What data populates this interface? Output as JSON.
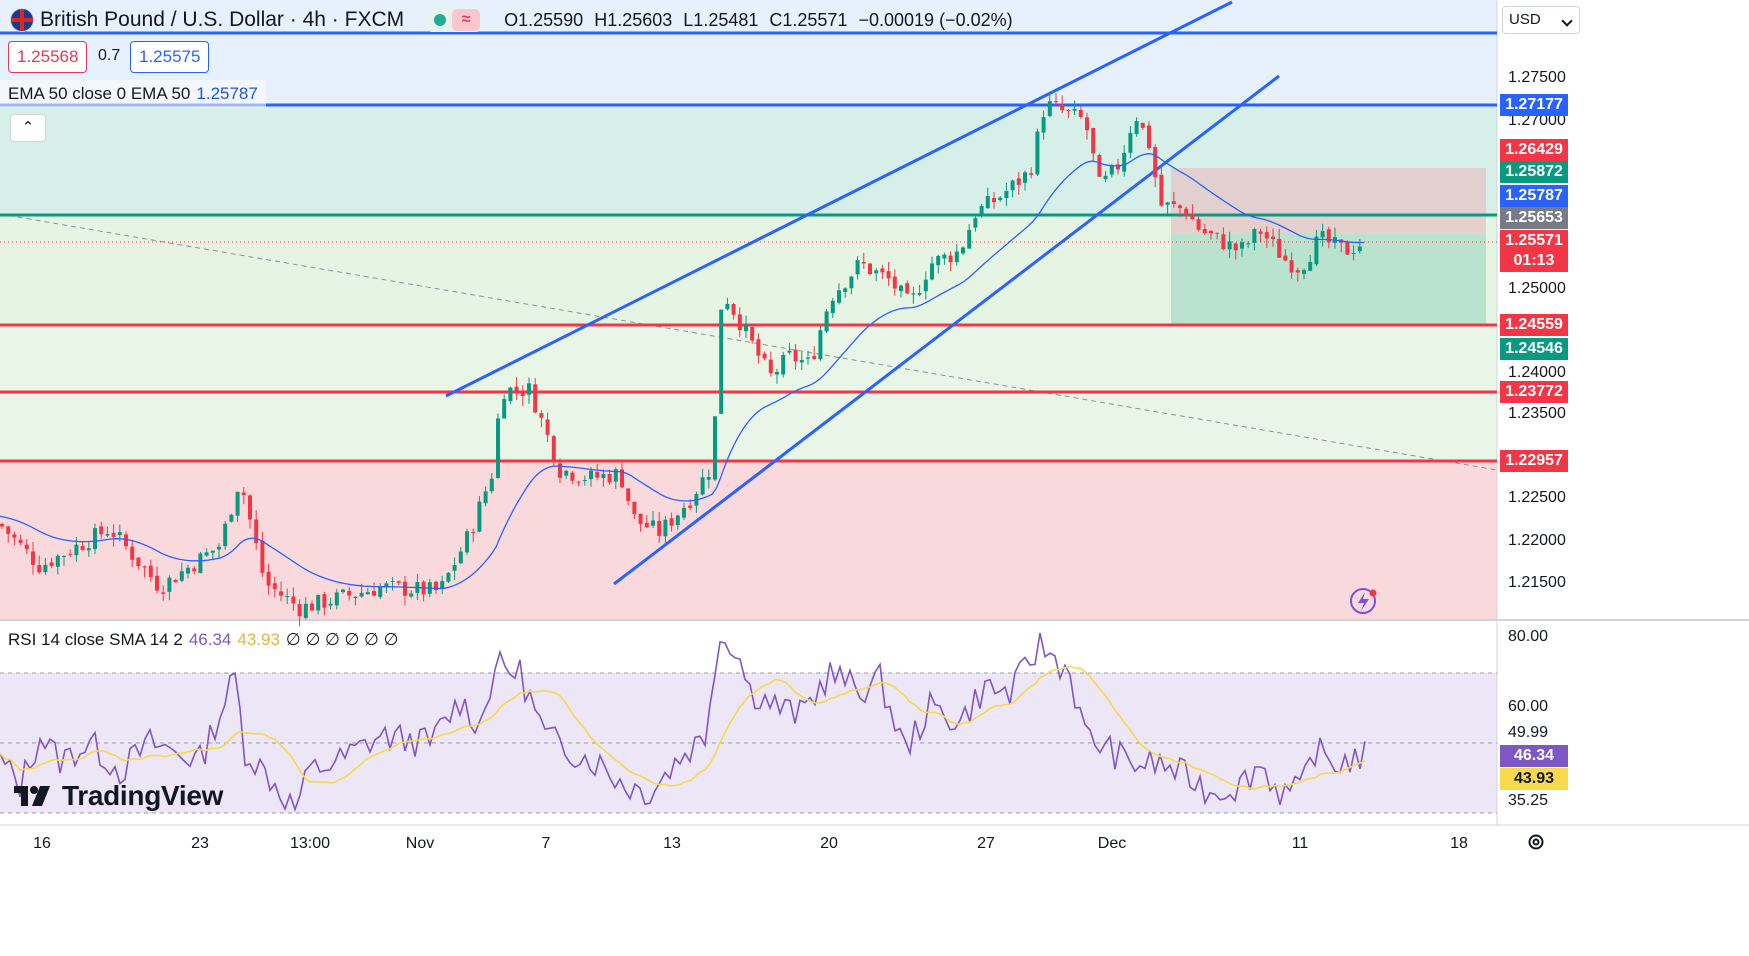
{
  "header": {
    "symbol": "British Pound / U.S. Dollar · 4h · FXCM",
    "open": "O1.25590",
    "high": "H1.25603",
    "low": "L1.25481",
    "close": "C1.25571",
    "change": "−0.00019 (−0.02%)",
    "market_state_icon": "green-dot",
    "flag_icon": "uk-flag-icon"
  },
  "quote": {
    "bid": "1.25568",
    "spread": "0.7",
    "ask": "1.25575"
  },
  "ema_legend": {
    "label": "EMA 50 close 0 EMA 50",
    "value": "1.25787"
  },
  "collapse_icon": "chevron-up-icon",
  "currency": "USD",
  "price_axis": [
    "1.27500",
    "1.27000",
    "1.25000",
    "1.24000",
    "1.23500",
    "1.22500",
    "1.22000",
    "1.21500"
  ],
  "price_labels": [
    {
      "text": "1.27177",
      "color": "#2962ff"
    },
    {
      "text": "1.26429",
      "color": "#f23645"
    },
    {
      "text": "1.25872",
      "color": "#089981"
    },
    {
      "text": "1.25787",
      "color": "#2962ff"
    },
    {
      "text": "1.25653",
      "color": "#787b86"
    },
    {
      "text": "1.25571",
      "color": "#f23645"
    },
    {
      "text": "01:13",
      "color": "#f23645"
    },
    {
      "text": "1.24559",
      "color": "#f23645"
    },
    {
      "text": "1.24546",
      "color": "#089981"
    },
    {
      "text": "1.23772",
      "color": "#f23645"
    },
    {
      "text": "1.22957",
      "color": "#f23645"
    }
  ],
  "rsi_legend": {
    "label": "RSI 14 close SMA 14 2",
    "rsi": "46.34",
    "sma": "43.93",
    "zeros": "∅ ∅ ∅ ∅ ∅ ∅"
  },
  "rsi_axis": [
    "80.00",
    "60.00",
    "49.99",
    "35.25"
  ],
  "rsi_labels": [
    {
      "text": "46.34",
      "color": "#7e57c2"
    },
    {
      "text": "43.93",
      "color": "#f7d94c"
    }
  ],
  "time_axis": [
    "16",
    "23",
    "13:00",
    "Nov",
    "7",
    "13",
    "20",
    "27",
    "Dec",
    "11",
    "18"
  ],
  "branding": {
    "logo": "TradingView"
  },
  "settings_icon": "gear-icon",
  "flash_icon": "lightning-icon",
  "chart_data": {
    "type": "candlestick",
    "timeframe": "4h",
    "ylim": [
      1.211,
      1.284
    ],
    "series": [
      {
        "name": "EMA 50",
        "last": 1.25787
      },
      {
        "name": "RSI 14",
        "last": 46.34
      },
      {
        "name": "SMA 14",
        "last": 43.93
      }
    ],
    "horizontal_levels": [
      1.27177,
      1.25653,
      1.24559,
      1.23772,
      1.22957
    ],
    "position_tool": {
      "entry": 1.25653,
      "target": 1.24559,
      "stop": 1.26429
    },
    "rsi_levels": [
      70,
      50,
      30
    ]
  }
}
